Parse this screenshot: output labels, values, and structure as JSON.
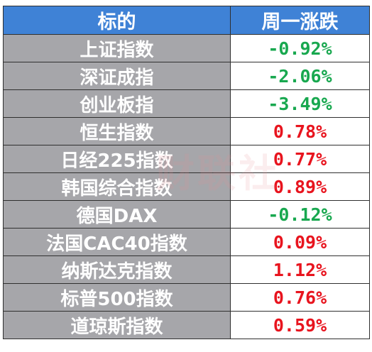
{
  "table": {
    "headers": {
      "name": "标的",
      "change": "周一涨跌"
    },
    "rows": [
      {
        "name": "上证指数",
        "change": "-0.92%",
        "direction": "down"
      },
      {
        "name": "深证成指",
        "change": "-2.06%",
        "direction": "down"
      },
      {
        "name": "创业板指",
        "change": "-3.49%",
        "direction": "down"
      },
      {
        "name": "恒生指数",
        "change": "0.78%",
        "direction": "up"
      },
      {
        "name": "日经225指数",
        "change": "0.77%",
        "direction": "up"
      },
      {
        "name": "韩国综合指数",
        "change": "0.89%",
        "direction": "up"
      },
      {
        "name": "德国DAX",
        "change": "-0.12%",
        "direction": "down"
      },
      {
        "name": "法国CAC40指数",
        "change": "0.09%",
        "direction": "up"
      },
      {
        "name": "纳斯达克指数",
        "change": "1.12%",
        "direction": "up"
      },
      {
        "name": "标普500指数",
        "change": "0.76%",
        "direction": "up"
      },
      {
        "name": "道琼斯指数",
        "change": "0.59%",
        "direction": "up"
      }
    ]
  },
  "watermark": "财联社",
  "colors": {
    "header_bg": "#3f82d6",
    "name_bg": "#a6a6aa",
    "negative": "#18a84f",
    "positive": "#e8141e"
  }
}
